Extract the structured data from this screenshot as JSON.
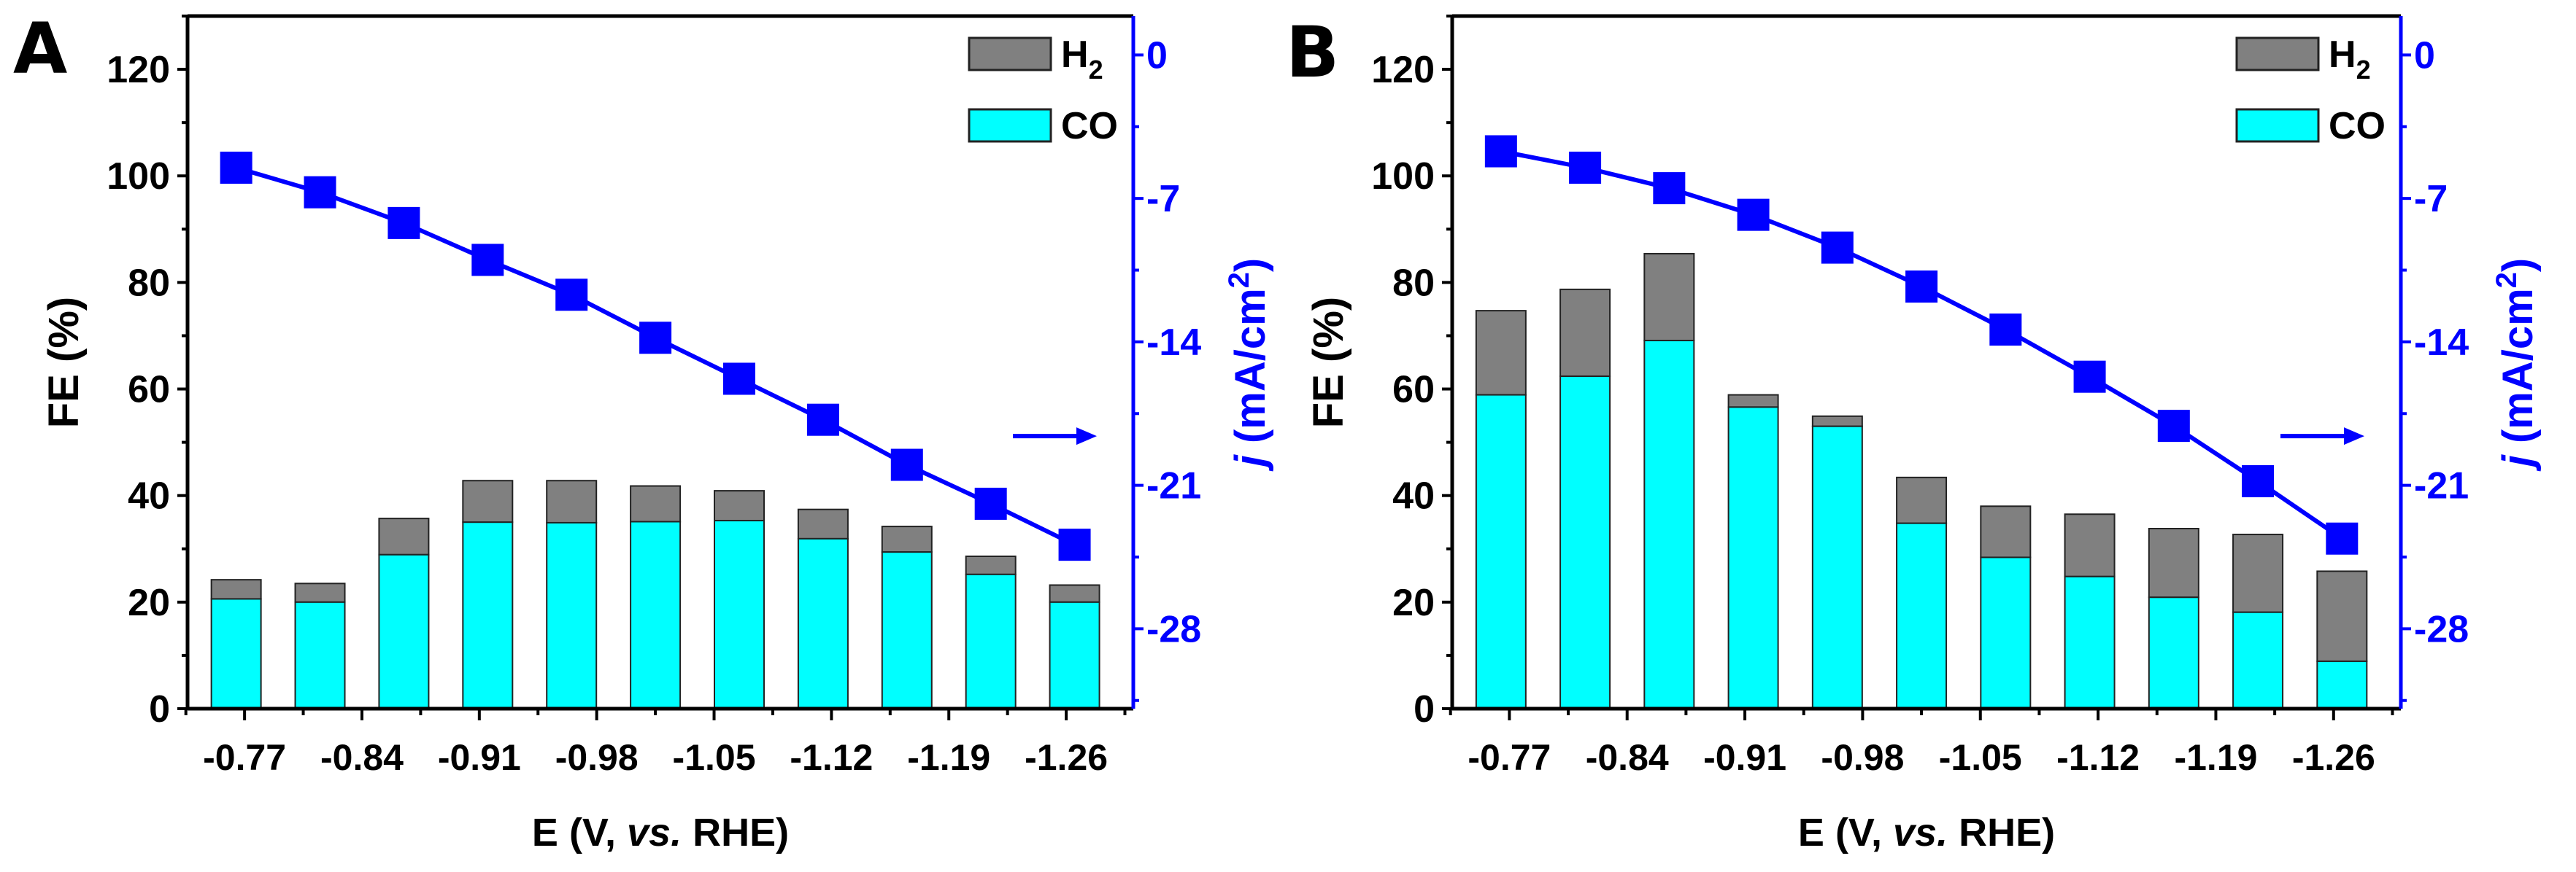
{
  "chart_data": [
    {
      "panel_label": "A",
      "type": "bar",
      "stacked": true,
      "xlabel_parts": [
        "E (V, ",
        "vs.",
        " RHE)"
      ],
      "ylabel": "FE (%)",
      "y2label_parts": [
        "j",
        " (mA/cm",
        "2",
        ")"
      ],
      "xticks": [
        "-0.77",
        "-0.84",
        "-0.91",
        "-0.98",
        "-1.05",
        "-1.12",
        "-1.19",
        "-1.26"
      ],
      "xtick_values": [
        -0.77,
        -0.84,
        -0.91,
        -0.98,
        -1.05,
        -1.12,
        -1.19,
        -1.26
      ],
      "xlim": [
        -0.736,
        -1.3
      ],
      "ylim": [
        0,
        130
      ],
      "yticks": [
        0,
        20,
        40,
        60,
        80,
        100,
        120
      ],
      "y2lim": [
        -31.9,
        1.9
      ],
      "y2ticks": [
        0,
        -7,
        -14,
        -21,
        -28
      ],
      "x": [
        -0.765,
        -0.815,
        -0.865,
        -0.915,
        -0.965,
        -1.015,
        -1.065,
        -1.115,
        -1.165,
        -1.215,
        -1.265
      ],
      "series": [
        {
          "name": "CO",
          "axis": "left",
          "kind": "bar",
          "color": "#00ffff",
          "values": [
            20.6,
            20.0,
            28.9,
            35.0,
            34.9,
            35.1,
            35.3,
            31.9,
            29.4,
            25.2,
            20.0
          ]
        },
        {
          "name": "H2",
          "axis": "left",
          "kind": "bar",
          "color": "#808080",
          "values": [
            3.6,
            3.5,
            6.8,
            7.8,
            7.9,
            6.7,
            5.6,
            5.5,
            4.8,
            3.4,
            3.2
          ]
        },
        {
          "axis": "right",
          "kind": "line",
          "color": "#0000ff",
          "values": [
            -5.5,
            -6.7,
            -8.2,
            -10.0,
            -11.7,
            -13.8,
            -15.8,
            -17.8,
            -20.0,
            -21.9,
            -23.9
          ]
        }
      ],
      "legend": {
        "position": "top-right",
        "entries": [
          {
            "label": "H",
            "sub": "2",
            "color": "#808080"
          },
          {
            "label": "CO",
            "sub": "",
            "color": "#00ffff"
          }
        ]
      },
      "annotation": "arrow pointing right to current-density axis",
      "grid": false
    },
    {
      "panel_label": "B",
      "type": "bar",
      "stacked": true,
      "xlabel_parts": [
        "E (V, ",
        "vs.",
        " RHE)"
      ],
      "ylabel": "FE (%)",
      "y2label_parts": [
        "j",
        " (mA/cm",
        "2",
        ")"
      ],
      "xticks": [
        "-0.77",
        "-0.84",
        "-0.91",
        "-0.98",
        "-1.05",
        "-1.12",
        "-1.19",
        "-1.26"
      ],
      "xtick_values": [
        -0.77,
        -0.84,
        -0.91,
        -0.98,
        -1.05,
        -1.12,
        -1.19,
        -1.26
      ],
      "xlim": [
        -0.736,
        -1.3
      ],
      "ylim": [
        0,
        130
      ],
      "yticks": [
        0,
        20,
        40,
        60,
        80,
        100,
        120
      ],
      "y2lim": [
        -31.9,
        1.9
      ],
      "y2ticks": [
        0,
        -7,
        -14,
        -21,
        -28
      ],
      "x": [
        -0.765,
        -0.815,
        -0.865,
        -0.915,
        -0.965,
        -1.015,
        -1.065,
        -1.115,
        -1.165,
        -1.215,
        -1.265
      ],
      "series": [
        {
          "name": "CO",
          "axis": "left",
          "kind": "bar",
          "color": "#00ffff",
          "values": [
            58.9,
            62.4,
            69.1,
            56.6,
            53.0,
            34.8,
            28.4,
            24.8,
            20.9,
            18.1,
            8.9
          ]
        },
        {
          "name": "H2",
          "axis": "left",
          "kind": "bar",
          "color": "#808080",
          "values": [
            15.8,
            16.3,
            16.3,
            2.3,
            1.9,
            8.6,
            9.6,
            11.7,
            12.9,
            14.6,
            16.9
          ]
        },
        {
          "axis": "right",
          "kind": "line",
          "color": "#0000ff",
          "values": [
            -4.7,
            -5.5,
            -6.5,
            -7.8,
            -9.4,
            -11.3,
            -13.4,
            -15.7,
            -18.1,
            -20.8,
            -23.6
          ]
        }
      ],
      "legend": {
        "position": "top-right",
        "entries": [
          {
            "label": "H",
            "sub": "2",
            "color": "#808080"
          },
          {
            "label": "CO",
            "sub": "",
            "color": "#00ffff"
          }
        ]
      },
      "annotation": "arrow pointing right to current-density axis",
      "grid": false
    }
  ]
}
